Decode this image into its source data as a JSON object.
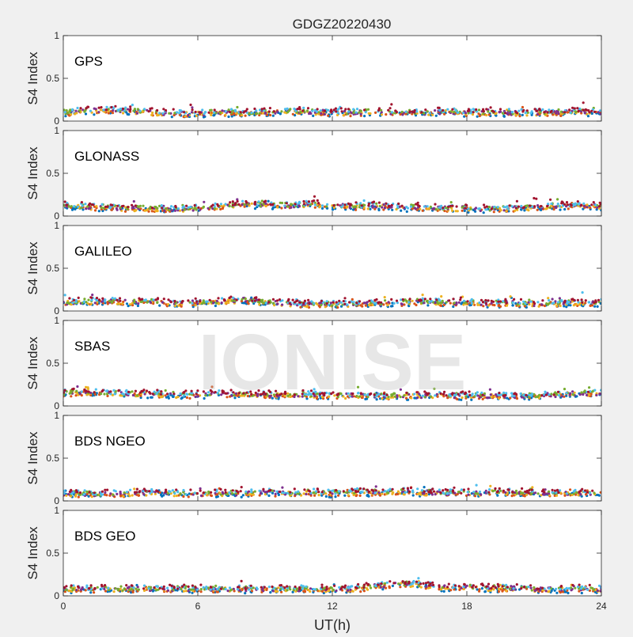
{
  "figure": {
    "title": "GDGZ20220430",
    "xlabel": "UT(h)",
    "watermark": "IONISE",
    "background_color": "#f0f0f0",
    "axes_color": "#ffffff",
    "series_colors": [
      "#0072BD",
      "#D95319",
      "#EDB120",
      "#7E2F8E",
      "#77AC30",
      "#4DBEEE",
      "#A2142F"
    ]
  },
  "chart_data": [
    {
      "type": "scatter",
      "label": "GPS",
      "ylabel": "S4 Index",
      "xlim": [
        0,
        24
      ],
      "ylim": [
        0,
        1
      ],
      "xticks": [
        0,
        6,
        12,
        18,
        24
      ],
      "yticks": [
        0,
        0.5,
        1
      ],
      "ytick_labels": [
        "0",
        "0.5",
        "1"
      ],
      "grid": false,
      "trend": {
        "x": [
          0,
          1,
          2,
          3,
          4,
          5,
          6,
          7,
          8,
          9,
          10,
          11,
          12,
          13,
          14,
          15,
          16,
          17,
          18,
          19,
          20,
          21,
          22,
          23,
          24
        ],
        "y": [
          0.1,
          0.12,
          0.13,
          0.12,
          0.1,
          0.09,
          0.09,
          0.1,
          0.1,
          0.1,
          0.12,
          0.11,
          0.1,
          0.1,
          0.11,
          0.1,
          0.1,
          0.11,
          0.1,
          0.1,
          0.09,
          0.1,
          0.1,
          0.11,
          0.1
        ]
      }
    },
    {
      "type": "scatter",
      "label": "GLONASS",
      "ylabel": "S4 Index",
      "xlim": [
        0,
        24
      ],
      "ylim": [
        0,
        1
      ],
      "xticks": [
        0,
        6,
        12,
        18,
        24
      ],
      "yticks": [
        0,
        0.5,
        1
      ],
      "ytick_labels": [
        "0",
        "0.5",
        "1"
      ],
      "grid": false,
      "trend": {
        "x": [
          0,
          1,
          2,
          3,
          4,
          5,
          6,
          7,
          8,
          9,
          10,
          11,
          12,
          13,
          14,
          15,
          16,
          17,
          18,
          19,
          20,
          21,
          22,
          23,
          24
        ],
        "y": [
          0.12,
          0.11,
          0.1,
          0.09,
          0.09,
          0.08,
          0.09,
          0.11,
          0.14,
          0.13,
          0.12,
          0.14,
          0.12,
          0.11,
          0.12,
          0.1,
          0.1,
          0.09,
          0.09,
          0.08,
          0.09,
          0.1,
          0.12,
          0.13,
          0.11
        ]
      }
    },
    {
      "type": "scatter",
      "label": "GALILEO",
      "ylabel": "S4 Index",
      "xlim": [
        0,
        24
      ],
      "ylim": [
        0,
        1
      ],
      "xticks": [
        0,
        6,
        12,
        18,
        24
      ],
      "yticks": [
        0,
        0.5,
        1
      ],
      "ytick_labels": [
        "0",
        "0.5",
        "1"
      ],
      "grid": false,
      "trend": {
        "x": [
          0,
          1,
          2,
          3,
          4,
          5,
          6,
          7,
          8,
          9,
          10,
          11,
          12,
          13,
          14,
          15,
          16,
          17,
          18,
          19,
          20,
          21,
          22,
          23,
          24
        ],
        "y": [
          0.1,
          0.11,
          0.12,
          0.1,
          0.11,
          0.09,
          0.1,
          0.11,
          0.13,
          0.1,
          0.09,
          0.08,
          0.08,
          0.08,
          0.09,
          0.1,
          0.11,
          0.1,
          0.1,
          0.09,
          0.09,
          0.08,
          0.09,
          0.1,
          0.1
        ]
      }
    },
    {
      "type": "scatter",
      "label": "SBAS",
      "ylabel": "S4 Index",
      "xlim": [
        0,
        24
      ],
      "ylim": [
        0,
        1
      ],
      "xticks": [
        0,
        6,
        12,
        18,
        24
      ],
      "yticks": [
        0,
        0.5,
        1
      ],
      "ytick_labels": [
        "0",
        "0.5",
        "1"
      ],
      "grid": false,
      "trend": {
        "x": [
          0,
          1,
          2,
          3,
          4,
          5,
          6,
          7,
          8,
          9,
          10,
          11,
          12,
          13,
          14,
          15,
          16,
          17,
          18,
          19,
          20,
          21,
          22,
          23,
          24
        ],
        "y": [
          0.15,
          0.16,
          0.15,
          0.14,
          0.14,
          0.13,
          0.13,
          0.14,
          0.14,
          0.13,
          0.13,
          0.13,
          0.12,
          0.12,
          0.12,
          0.12,
          0.12,
          0.12,
          0.12,
          0.12,
          0.12,
          0.12,
          0.13,
          0.15,
          0.15
        ]
      }
    },
    {
      "type": "scatter",
      "label": "BDS NGEO",
      "ylabel": "S4 Index",
      "xlim": [
        0,
        24
      ],
      "ylim": [
        0,
        1
      ],
      "xticks": [
        0,
        6,
        12,
        18,
        24
      ],
      "yticks": [
        0,
        0.5,
        1
      ],
      "ytick_labels": [
        "0",
        "0.5",
        "1"
      ],
      "grid": false,
      "trend": {
        "x": [
          0,
          1,
          2,
          3,
          4,
          5,
          6,
          7,
          8,
          9,
          10,
          11,
          12,
          13,
          14,
          15,
          16,
          17,
          18,
          19,
          20,
          21,
          22,
          23,
          24
        ],
        "y": [
          0.09,
          0.08,
          0.08,
          0.09,
          0.1,
          0.09,
          0.08,
          0.09,
          0.09,
          0.1,
          0.09,
          0.1,
          0.09,
          0.1,
          0.1,
          0.11,
          0.1,
          0.09,
          0.09,
          0.1,
          0.1,
          0.09,
          0.09,
          0.1,
          0.09
        ]
      }
    },
    {
      "type": "scatter",
      "label": "BDS GEO",
      "ylabel": "S4 Index",
      "xlim": [
        0,
        24
      ],
      "ylim": [
        0,
        1
      ],
      "xticks": [
        0,
        6,
        12,
        18,
        24
      ],
      "xtick_labels": [
        "0",
        "6",
        "12",
        "18",
        "24"
      ],
      "yticks": [
        0,
        0.5,
        1
      ],
      "ytick_labels": [
        "0",
        "0.5",
        "1"
      ],
      "grid": false,
      "trend": {
        "x": [
          0,
          1,
          2,
          3,
          4,
          5,
          6,
          7,
          8,
          9,
          10,
          11,
          12,
          13,
          14,
          15,
          16,
          17,
          18,
          19,
          20,
          21,
          22,
          23,
          24
        ],
        "y": [
          0.08,
          0.08,
          0.08,
          0.08,
          0.08,
          0.08,
          0.08,
          0.08,
          0.08,
          0.08,
          0.08,
          0.08,
          0.08,
          0.08,
          0.12,
          0.14,
          0.13,
          0.1,
          0.1,
          0.09,
          0.09,
          0.08,
          0.08,
          0.08,
          0.08
        ]
      }
    }
  ]
}
